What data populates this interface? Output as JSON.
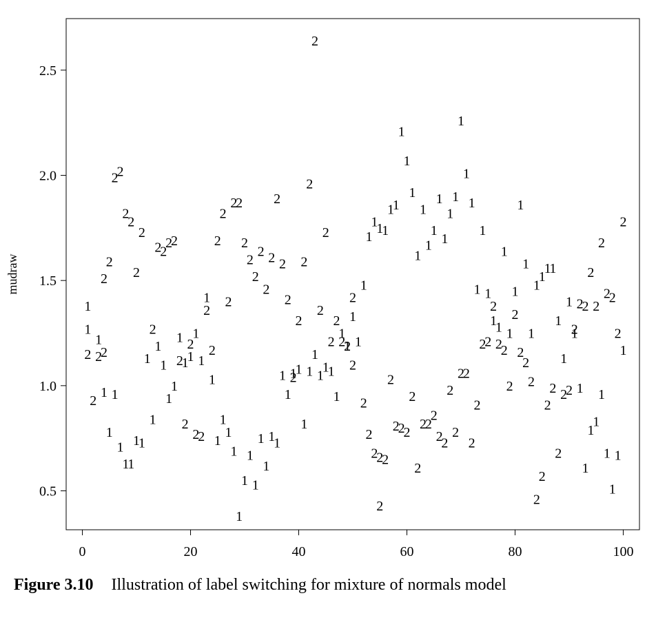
{
  "chart_data": {
    "type": "scatter",
    "title": "",
    "xlabel": "",
    "ylabel": "mudraw",
    "xlim": [
      -3,
      103
    ],
    "ylim": [
      0.315,
      2.745
    ],
    "x_ticks": [
      0,
      20,
      40,
      60,
      80,
      100
    ],
    "y_ticks": [
      0.5,
      1.0,
      1.5,
      2.0,
      2.5
    ],
    "x_tick_labels": [
      "0",
      "20",
      "40",
      "60",
      "80",
      "100"
    ],
    "y_tick_labels": [
      "0.5",
      "1.0",
      "1.5",
      "2.0",
      "2.5"
    ],
    "grid": false,
    "legend": "none",
    "marker_style": "points drawn as label characters '1' and '2'",
    "series": [
      {
        "marker": "1",
        "points": [
          [
            1,
            1.38
          ],
          [
            1,
            1.27
          ],
          [
            3,
            1.22
          ],
          [
            4,
            0.97
          ],
          [
            5,
            0.78
          ],
          [
            6,
            0.96
          ],
          [
            7,
            0.71
          ],
          [
            8,
            0.63
          ],
          [
            9,
            0.63
          ],
          [
            10,
            0.74
          ],
          [
            11,
            0.73
          ],
          [
            12,
            1.13
          ],
          [
            13,
            0.84
          ],
          [
            14,
            1.19
          ],
          [
            15,
            1.1
          ],
          [
            16,
            0.94
          ],
          [
            17,
            1.0
          ],
          [
            18,
            1.23
          ],
          [
            19,
            1.11
          ],
          [
            20,
            1.14
          ],
          [
            21,
            1.25
          ],
          [
            22,
            1.12
          ],
          [
            23,
            1.42
          ],
          [
            24,
            1.03
          ],
          [
            25,
            0.74
          ],
          [
            26,
            0.84
          ],
          [
            27,
            0.78
          ],
          [
            28,
            0.69
          ],
          [
            29,
            0.38
          ],
          [
            30,
            0.55
          ],
          [
            31,
            0.67
          ],
          [
            32,
            0.53
          ],
          [
            33,
            0.75
          ],
          [
            34,
            0.62
          ],
          [
            35,
            0.76
          ],
          [
            36,
            0.73
          ],
          [
            37,
            1.05
          ],
          [
            38,
            0.96
          ],
          [
            39,
            1.06
          ],
          [
            40,
            1.08
          ],
          [
            41,
            0.82
          ],
          [
            42,
            1.07
          ],
          [
            43,
            1.15
          ],
          [
            44,
            1.05
          ],
          [
            45,
            1.09
          ],
          [
            46,
            1.07
          ],
          [
            47,
            0.95
          ],
          [
            48,
            1.25
          ],
          [
            49,
            1.19
          ],
          [
            50,
            1.33
          ],
          [
            51,
            1.21
          ],
          [
            52,
            1.48
          ],
          [
            53,
            1.71
          ],
          [
            54,
            1.78
          ],
          [
            55,
            1.75
          ],
          [
            56,
            1.74
          ],
          [
            57,
            1.84
          ],
          [
            58,
            1.86
          ],
          [
            59,
            2.21
          ],
          [
            60,
            2.07
          ],
          [
            61,
            1.92
          ],
          [
            62,
            1.62
          ],
          [
            63,
            1.84
          ],
          [
            64,
            1.67
          ],
          [
            65,
            1.74
          ],
          [
            66,
            1.89
          ],
          [
            67,
            1.7
          ],
          [
            68,
            1.82
          ],
          [
            69,
            1.9
          ],
          [
            70,
            2.26
          ],
          [
            71,
            2.01
          ],
          [
            72,
            1.87
          ],
          [
            73,
            1.46
          ],
          [
            74,
            1.74
          ],
          [
            75,
            1.44
          ],
          [
            76,
            1.31
          ],
          [
            77,
            1.28
          ],
          [
            78,
            1.64
          ],
          [
            79,
            1.25
          ],
          [
            80,
            1.45
          ],
          [
            81,
            1.86
          ],
          [
            82,
            1.58
          ],
          [
            83,
            1.25
          ],
          [
            84,
            1.48
          ],
          [
            85,
            1.52
          ],
          [
            86,
            1.56
          ],
          [
            87,
            1.56
          ],
          [
            88,
            1.31
          ],
          [
            89,
            1.13
          ],
          [
            90,
            1.4
          ],
          [
            91,
            1.25
          ],
          [
            92,
            0.99
          ],
          [
            93,
            0.61
          ],
          [
            94,
            0.79
          ],
          [
            95,
            0.83
          ],
          [
            96,
            0.96
          ],
          [
            97,
            0.68
          ],
          [
            98,
            0.51
          ],
          [
            99,
            0.67
          ],
          [
            100,
            1.17
          ]
        ]
      },
      {
        "marker": "2",
        "points": [
          [
            1,
            1.15
          ],
          [
            2,
            0.93
          ],
          [
            3,
            1.14
          ],
          [
            4,
            1.16
          ],
          [
            4,
            1.51
          ],
          [
            5,
            1.59
          ],
          [
            6,
            1.99
          ],
          [
            7,
            2.02
          ],
          [
            8,
            1.82
          ],
          [
            9,
            1.78
          ],
          [
            10,
            1.54
          ],
          [
            11,
            1.73
          ],
          [
            13,
            1.27
          ],
          [
            14,
            1.66
          ],
          [
            15,
            1.64
          ],
          [
            16,
            1.68
          ],
          [
            17,
            1.69
          ],
          [
            18,
            1.12
          ],
          [
            19,
            0.82
          ],
          [
            20,
            1.2
          ],
          [
            21,
            0.77
          ],
          [
            22,
            0.76
          ],
          [
            23,
            1.36
          ],
          [
            24,
            1.17
          ],
          [
            25,
            1.69
          ],
          [
            26,
            1.82
          ],
          [
            27,
            1.4
          ],
          [
            28,
            1.87
          ],
          [
            29,
            1.87
          ],
          [
            30,
            1.68
          ],
          [
            31,
            1.6
          ],
          [
            32,
            1.52
          ],
          [
            33,
            1.64
          ],
          [
            34,
            1.46
          ],
          [
            35,
            1.61
          ],
          [
            36,
            1.89
          ],
          [
            37,
            1.58
          ],
          [
            38,
            1.41
          ],
          [
            39,
            1.04
          ],
          [
            40,
            1.31
          ],
          [
            41,
            1.59
          ],
          [
            42,
            1.96
          ],
          [
            43,
            2.64
          ],
          [
            44,
            1.36
          ],
          [
            45,
            1.73
          ],
          [
            46,
            1.21
          ],
          [
            47,
            1.31
          ],
          [
            48,
            1.21
          ],
          [
            49,
            1.19
          ],
          [
            50,
            1.42
          ],
          [
            50,
            1.1
          ],
          [
            52,
            0.92
          ],
          [
            53,
            0.77
          ],
          [
            54,
            0.68
          ],
          [
            55,
            0.66
          ],
          [
            55,
            0.43
          ],
          [
            56,
            0.65
          ],
          [
            57,
            1.03
          ],
          [
            58,
            0.81
          ],
          [
            59,
            0.8
          ],
          [
            60,
            0.78
          ],
          [
            61,
            0.95
          ],
          [
            62,
            0.61
          ],
          [
            63,
            0.82
          ],
          [
            64,
            0.82
          ],
          [
            65,
            0.86
          ],
          [
            66,
            0.76
          ],
          [
            67,
            0.73
          ],
          [
            68,
            0.98
          ],
          [
            69,
            0.78
          ],
          [
            70,
            1.06
          ],
          [
            71,
            1.06
          ],
          [
            72,
            0.73
          ],
          [
            73,
            0.91
          ],
          [
            74,
            1.2
          ],
          [
            75,
            1.21
          ],
          [
            76,
            1.38
          ],
          [
            77,
            1.2
          ],
          [
            78,
            1.17
          ],
          [
            79,
            1.0
          ],
          [
            80,
            1.34
          ],
          [
            81,
            1.16
          ],
          [
            82,
            1.11
          ],
          [
            83,
            1.02
          ],
          [
            84,
            0.46
          ],
          [
            85,
            0.57
          ],
          [
            86,
            0.91
          ],
          [
            87,
            0.99
          ],
          [
            88,
            0.68
          ],
          [
            89,
            0.96
          ],
          [
            90,
            0.98
          ],
          [
            91,
            1.27
          ],
          [
            92,
            1.39
          ],
          [
            93,
            1.38
          ],
          [
            94,
            1.54
          ],
          [
            95,
            1.38
          ],
          [
            96,
            1.68
          ],
          [
            97,
            1.44
          ],
          [
            98,
            1.42
          ],
          [
            99,
            1.25
          ],
          [
            100,
            1.78
          ]
        ]
      }
    ]
  },
  "caption": {
    "figure_label": "Figure 3.10",
    "text": "Illustration of label switching for mixture of normals model"
  }
}
